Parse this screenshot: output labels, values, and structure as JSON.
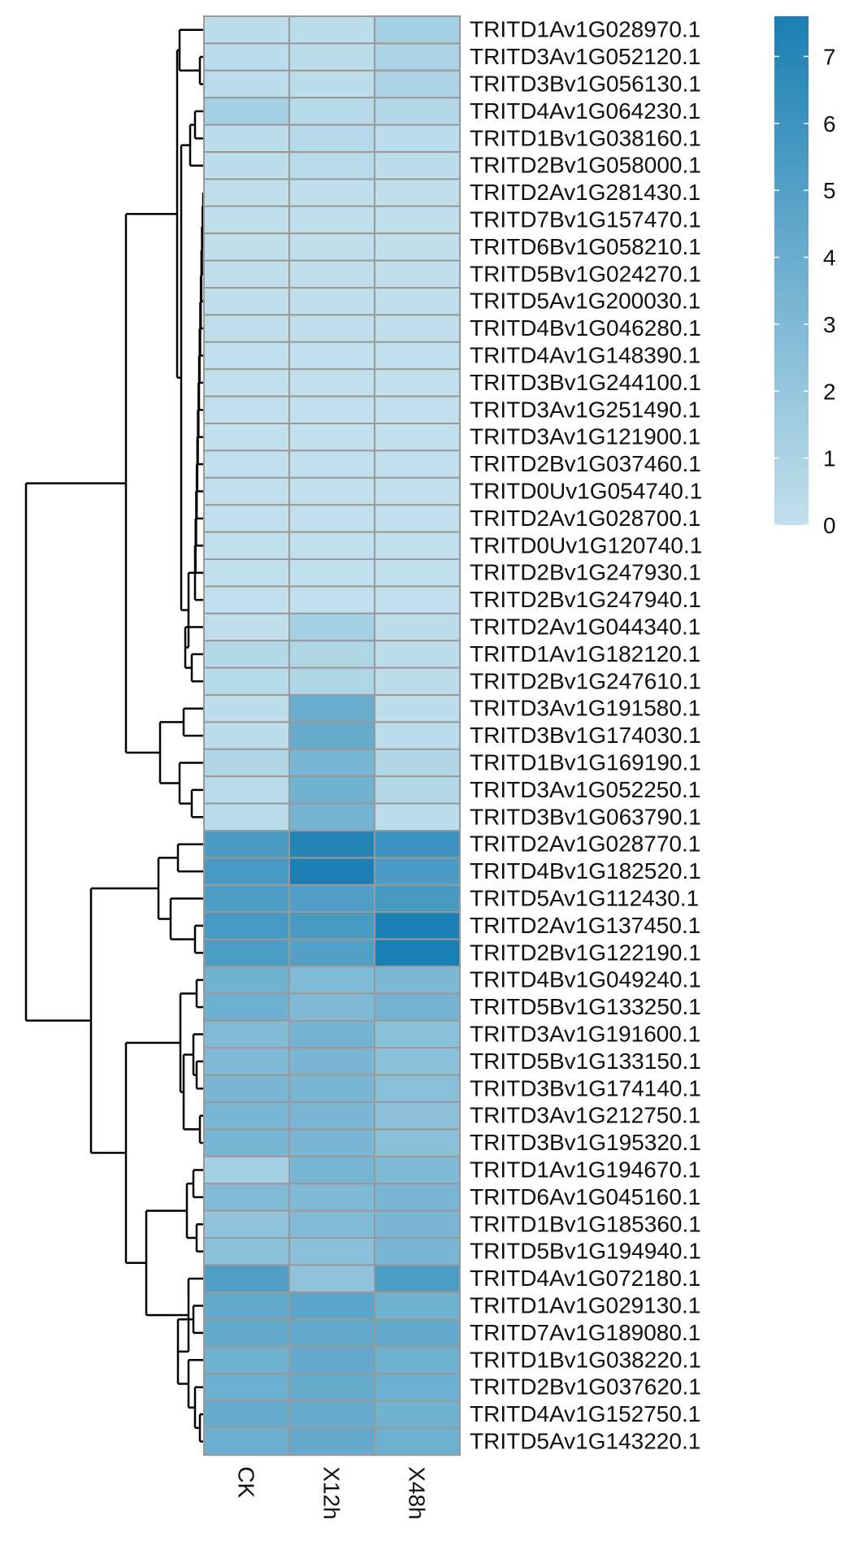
{
  "chart_data": {
    "type": "heatmap",
    "title": "",
    "columns": [
      "CK",
      "X12h",
      "X48h"
    ],
    "rows": [
      "TRITD1Av1G028970.1",
      "TRITD3Av1G052120.1",
      "TRITD3Bv1G056130.1",
      "TRITD4Av1G064230.1",
      "TRITD1Bv1G038160.1",
      "TRITD2Bv1G058000.1",
      "TRITD2Av1G281430.1",
      "TRITD7Bv1G157470.1",
      "TRITD6Bv1G058210.1",
      "TRITD5Bv1G024270.1",
      "TRITD5Av1G200030.1",
      "TRITD4Bv1G046280.1",
      "TRITD4Av1G148390.1",
      "TRITD3Bv1G244100.1",
      "TRITD3Av1G251490.1",
      "TRITD3Av1G121900.1",
      "TRITD2Bv1G037460.1",
      "TRITD0Uv1G054740.1",
      "TRITD2Av1G028700.1",
      "TRITD0Uv1G120740.1",
      "TRITD2Bv1G247930.1",
      "TRITD2Bv1G247940.1",
      "TRITD2Av1G044340.1",
      "TRITD1Av1G182120.1",
      "TRITD2Bv1G247610.1",
      "TRITD3Av1G191580.1",
      "TRITD3Bv1G174030.1",
      "TRITD1Bv1G169190.1",
      "TRITD3Av1G052250.1",
      "TRITD3Bv1G063790.1",
      "TRITD2Av1G028770.1",
      "TRITD4Bv1G182520.1",
      "TRITD5Av1G112430.1",
      "TRITD2Av1G137450.1",
      "TRITD2Bv1G122190.1",
      "TRITD4Bv1G049240.1",
      "TRITD5Bv1G133250.1",
      "TRITD3Av1G191600.1",
      "TRITD5Bv1G133150.1",
      "TRITD3Bv1G174140.1",
      "TRITD3Av1G212750.1",
      "TRITD3Bv1G195320.1",
      "TRITD1Av1G194670.1",
      "TRITD6Av1G045160.1",
      "TRITD1Bv1G185360.1",
      "TRITD5Bv1G194940.1",
      "TRITD4Av1G072180.1",
      "TRITD1Av1G029130.1",
      "TRITD7Av1G189080.1",
      "TRITD1Bv1G038220.1",
      "TRITD2Bv1G037620.1",
      "TRITD4Av1G152750.1",
      "TRITD5Av1G143220.1"
    ],
    "values": [
      [
        0.3,
        0.3,
        1.3
      ],
      [
        0.3,
        0.2,
        1.0
      ],
      [
        0.3,
        0.2,
        1.0
      ],
      [
        1.3,
        0.5,
        0.7
      ],
      [
        0.2,
        0.5,
        0.3
      ],
      [
        0.2,
        0.4,
        0.2
      ],
      [
        0.1,
        0.1,
        0.1
      ],
      [
        0.1,
        0.1,
        0.1
      ],
      [
        0.1,
        0.1,
        0.1
      ],
      [
        0.1,
        0.1,
        0.1
      ],
      [
        0.1,
        0.1,
        0.1
      ],
      [
        0.1,
        0.1,
        0.1
      ],
      [
        0.0,
        0.0,
        0.0
      ],
      [
        0.0,
        0.0,
        0.0
      ],
      [
        0.0,
        0.0,
        0.0
      ],
      [
        0.0,
        0.0,
        0.0
      ],
      [
        0.0,
        0.0,
        0.0
      ],
      [
        0.0,
        0.0,
        0.0
      ],
      [
        0.0,
        0.0,
        0.0
      ],
      [
        0.0,
        0.0,
        0.0
      ],
      [
        0.0,
        0.0,
        0.0
      ],
      [
        0.0,
        0.0,
        0.0
      ],
      [
        0.1,
        1.3,
        0.2
      ],
      [
        0.6,
        0.8,
        0.2
      ],
      [
        0.5,
        0.8,
        0.2
      ],
      [
        0.2,
        4.0,
        0.2
      ],
      [
        0.2,
        4.1,
        0.3
      ],
      [
        0.8,
        3.3,
        0.8
      ],
      [
        0.4,
        3.6,
        0.7
      ],
      [
        0.4,
        3.5,
        0.3
      ],
      [
        5.4,
        7.1,
        6.0
      ],
      [
        5.5,
        7.5,
        5.4
      ],
      [
        5.3,
        5.1,
        5.5
      ],
      [
        5.6,
        5.5,
        7.5
      ],
      [
        5.3,
        5.0,
        7.6
      ],
      [
        3.6,
        2.9,
        3.1
      ],
      [
        3.8,
        3.0,
        3.5
      ],
      [
        2.9,
        3.5,
        2.5
      ],
      [
        3.0,
        3.2,
        2.5
      ],
      [
        3.2,
        3.3,
        2.6
      ],
      [
        3.3,
        3.2,
        2.4
      ],
      [
        3.4,
        3.2,
        2.5
      ],
      [
        1.3,
        3.4,
        3.0
      ],
      [
        2.9,
        3.0,
        3.2
      ],
      [
        2.2,
        2.9,
        3.2
      ],
      [
        2.5,
        2.6,
        3.3
      ],
      [
        5.1,
        2.2,
        5.3
      ],
      [
        4.2,
        4.6,
        3.7
      ],
      [
        4.2,
        4.3,
        4.2
      ],
      [
        3.6,
        4.2,
        3.7
      ],
      [
        3.8,
        4.1,
        3.8
      ],
      [
        4.1,
        4.1,
        3.6
      ],
      [
        3.9,
        4.2,
        3.8
      ]
    ],
    "legend": {
      "ticks": [
        0,
        1,
        2,
        3,
        4,
        5,
        6,
        7
      ],
      "range": [
        0,
        7.6
      ],
      "color_low": "#c2e0ec",
      "color_high": "#1a7fb3"
    },
    "cell_border_color": "#999999",
    "dendrogram_color": "#000000"
  }
}
